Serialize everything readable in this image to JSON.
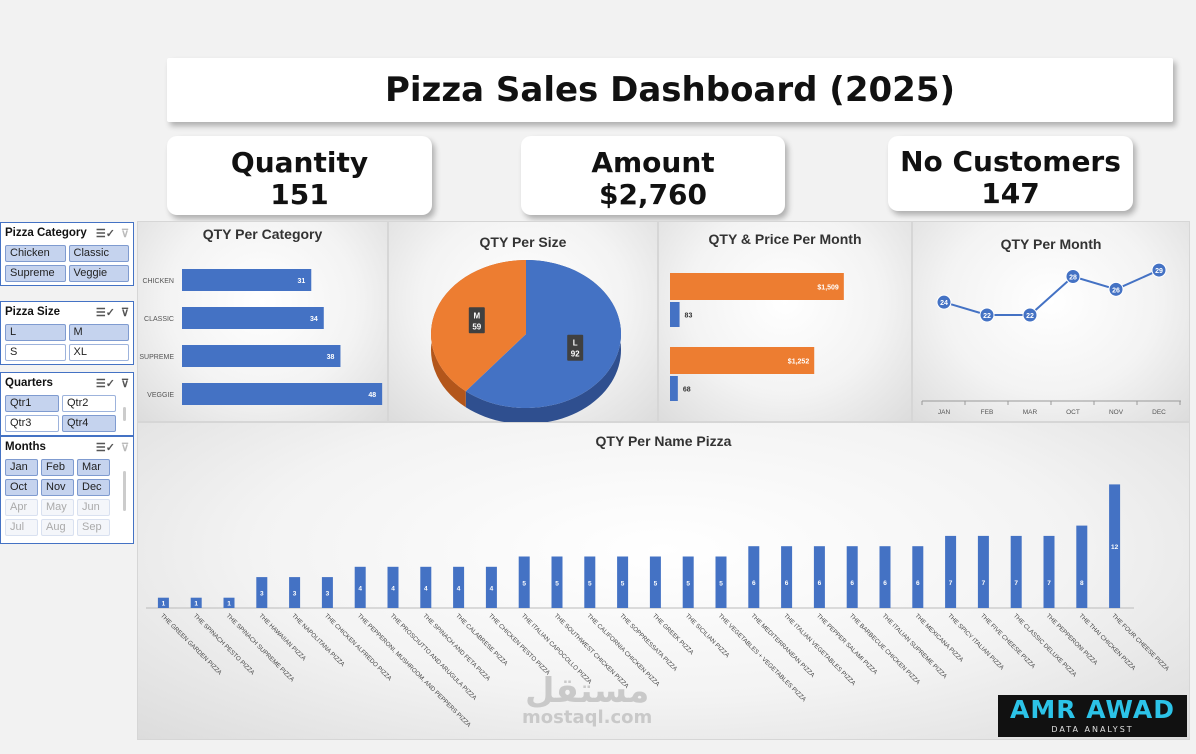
{
  "title": "Pizza Sales Dashboard (2025)",
  "kpis": {
    "quantity": {
      "label": "Quantity",
      "value": "151"
    },
    "amount": {
      "label": "Amount",
      "value": "$2,760"
    },
    "customers": {
      "label": "No Customers",
      "value": "147"
    }
  },
  "colors": {
    "blue": "#4472c4",
    "orange": "#ed7d31",
    "navy": "#2f5597"
  },
  "slicers": {
    "category": {
      "title": "Pizza Category",
      "items": [
        {
          "label": "Chicken",
          "selected": true
        },
        {
          "label": "Classic",
          "selected": true
        },
        {
          "label": "Supreme",
          "selected": true
        },
        {
          "label": "Veggie",
          "selected": true
        }
      ]
    },
    "size": {
      "title": "Pizza Size",
      "items": [
        {
          "label": "L",
          "selected": true
        },
        {
          "label": "M",
          "selected": true
        },
        {
          "label": "S",
          "selected": false
        },
        {
          "label": "XL",
          "selected": false
        }
      ]
    },
    "quarters": {
      "title": "Quarters",
      "items": [
        {
          "label": "Qtr1",
          "selected": true
        },
        {
          "label": "Qtr2",
          "selected": false
        },
        {
          "label": "Qtr3",
          "selected": false
        },
        {
          "label": "Qtr4",
          "selected": true
        }
      ]
    },
    "months": {
      "title": "Months",
      "items": [
        {
          "label": "Jan",
          "state": "selected"
        },
        {
          "label": "Feb",
          "state": "selected"
        },
        {
          "label": "Mar",
          "state": "selected"
        },
        {
          "label": "Oct",
          "state": "selected"
        },
        {
          "label": "Nov",
          "state": "selected"
        },
        {
          "label": "Dec",
          "state": "selected"
        },
        {
          "label": "Apr",
          "state": "disabled"
        },
        {
          "label": "May",
          "state": "disabled"
        },
        {
          "label": "Jun",
          "state": "disabled"
        },
        {
          "label": "Jul",
          "state": "disabled"
        },
        {
          "label": "Aug",
          "state": "disabled"
        },
        {
          "label": "Sep",
          "state": "disabled"
        }
      ]
    }
  },
  "chart_data": [
    {
      "type": "bar",
      "orientation": "horizontal",
      "title": "QTY Per Category",
      "categories": [
        "CHICKEN",
        "CLASSIC",
        "SUPREME",
        "VEGGIE"
      ],
      "values": [
        31,
        34,
        38,
        48
      ]
    },
    {
      "type": "pie",
      "title": "QTY Per Size",
      "slices": [
        {
          "label": "L",
          "value": 92,
          "color": "#4472c4"
        },
        {
          "label": "M",
          "value": 59,
          "color": "#ed7d31"
        }
      ]
    },
    {
      "type": "bar",
      "orientation": "horizontal",
      "title": "QTY & Price Per Month",
      "groups": [
        {
          "price": 1509,
          "price_label": "$1,509",
          "qty": 83
        },
        {
          "price": 1252,
          "price_label": "$1,252",
          "qty": 68
        }
      ]
    },
    {
      "type": "line",
      "title": "QTY Per Month",
      "categories": [
        "JAN",
        "FEB",
        "MAR",
        "OCT",
        "NOV",
        "DEC"
      ],
      "values": [
        24,
        22,
        22,
        28,
        26,
        29
      ]
    },
    {
      "type": "bar",
      "title": "QTY Per Name Pizza",
      "categories": [
        "THE GREEN GARDEN PIZZA",
        "THE SPINACH PESTO PIZZA",
        "THE SPINACH SUPREME PIZZA",
        "THE HAWAIIAN PIZZA",
        "THE NAPOLITANA PIZZA",
        "THE CHICKEN ALFREDO PIZZA",
        "THE PEPPERONI, MUSHROOM, AND PEPPERS PIZZA",
        "THE PROSCIUTTO AND ARUGULA PIZZA",
        "THE SPINACH AND FETA PIZZA",
        "THE CALABRESE PIZZA",
        "THE CHICKEN PESTO PIZZA",
        "THE ITALIAN CAPOCOLLO PIZZA",
        "THE SOUTHWEST CHICKEN PIZZA",
        "THE CALIFORNIA CHICKEN PIZZA",
        "THE SOPPRESSATA PIZZA",
        "THE GREEK PIZZA",
        "THE SICILIAN PIZZA",
        "THE VEGETABLES + VEGETABLES PIZZA",
        "THE MEDITERRANEAN PIZZA",
        "THE ITALIAN VEGETABLES PIZZA",
        "THE PEPPER SALAMI PIZZA",
        "THE BARBECUE CHICKEN PIZZA",
        "THE ITALIAN SUPREME PIZZA",
        "THE MEXICANA PIZZA",
        "THE SPICY ITALIAN PIZZA",
        "THE FIVE CHEESE PIZZA",
        "THE CLASSIC DELUXE PIZZA",
        "THE PEPPERONI PIZZA",
        "THE THAI CHICKEN PIZZA",
        "THE FOUR CHEESE PIZZA"
      ],
      "values": [
        1,
        1,
        1,
        3,
        3,
        3,
        4,
        4,
        4,
        4,
        4,
        5,
        5,
        5,
        5,
        5,
        5,
        5,
        6,
        6,
        6,
        6,
        6,
        6,
        7,
        7,
        7,
        7,
        8,
        12
      ]
    }
  ],
  "watermark": {
    "arabic": "مستقل",
    "latin": "mostaql.com"
  },
  "logo": {
    "name": "AMR AWAD",
    "tagline": "DATA ANALYST"
  }
}
